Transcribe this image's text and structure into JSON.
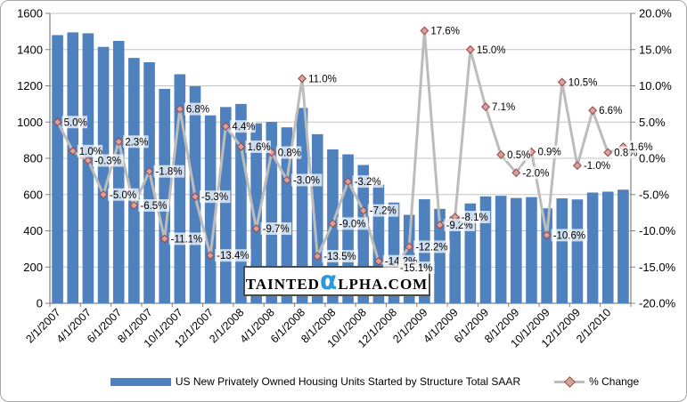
{
  "watermark": {
    "prefix": "TAINTED",
    "alpha": "α",
    "suffix": "LPHA.COM",
    "alpha_color": "#2b9ad6"
  },
  "chart_data": {
    "type": "bar+line combo",
    "title": "",
    "categories": [
      "2/1/2007",
      "3/1/2007",
      "4/1/2007",
      "5/1/2007",
      "6/1/2007",
      "7/1/2007",
      "8/1/2007",
      "9/1/2007",
      "10/1/2007",
      "11/1/2007",
      "12/1/2007",
      "1/1/2008",
      "2/1/2008",
      "3/1/2008",
      "4/1/2008",
      "5/1/2008",
      "6/1/2008",
      "7/1/2008",
      "8/1/2008",
      "9/1/2008",
      "10/1/2008",
      "11/1/2008",
      "12/1/2008",
      "1/1/2009",
      "2/1/2009",
      "3/1/2009",
      "4/1/2009",
      "5/1/2009",
      "6/1/2009",
      "7/1/2009",
      "8/1/2009",
      "9/1/2009",
      "10/1/2009",
      "11/1/2009",
      "12/1/2009",
      "1/1/2010",
      "2/1/2010",
      "3/1/2010"
    ],
    "x_tick_labels": [
      "2/1/2007",
      "4/1/2007",
      "6/1/2007",
      "8/1/2007",
      "10/1/2007",
      "12/1/2007",
      "2/1/2008",
      "4/1/2008",
      "6/1/2008",
      "8/1/2008",
      "10/1/2008",
      "12/1/2008",
      "2/1/2009",
      "4/1/2009",
      "6/1/2009",
      "8/1/2009",
      "10/1/2009",
      "12/1/2009",
      "2/1/2010"
    ],
    "series": [
      {
        "name": "US New Privately Owned Housing Units Started by Structure Total  SAAR",
        "type": "bar",
        "color": "#4e81bd",
        "axis": "left",
        "values": [
          1480,
          1495,
          1490,
          1415,
          1448,
          1354,
          1330,
          1183,
          1264,
          1198,
          1037,
          1083,
          1100,
          993,
          1001,
          971,
          1078,
          933,
          849,
          822,
          763,
          655,
          556,
          488,
          574,
          521,
          479,
          551,
          590,
          593,
          581,
          586,
          524,
          579,
          573,
          611,
          616,
          627
        ]
      },
      {
        "name": "% Change",
        "type": "line",
        "color": "#bcbcbc",
        "marker": "diamond",
        "marker_fill": "#d6a3a1",
        "marker_stroke": "#9e4b47",
        "axis": "right",
        "values": [
          5.0,
          1.0,
          -0.3,
          -5.0,
          2.3,
          -6.5,
          -1.8,
          -11.1,
          6.8,
          -5.3,
          -13.4,
          4.4,
          1.6,
          -9.7,
          0.8,
          -3.0,
          11.0,
          -13.5,
          -9.0,
          -3.2,
          -7.2,
          -14.2,
          -15.1,
          -12.2,
          17.6,
          -9.2,
          -8.1,
          15.0,
          7.1,
          0.5,
          -2.0,
          0.9,
          -10.6,
          10.5,
          -1.0,
          6.6,
          0.8,
          1.6
        ],
        "labels": [
          "5.0%",
          "1.0%",
          "-0.3%",
          "-5.0%",
          "2.3%",
          "-6.5%",
          "-1.8%",
          "-11.1%",
          "6.8%",
          "-5.3%",
          "-13.4%",
          "4.4%",
          "1.6%",
          "-9.7%",
          "0.8%",
          "-3.0%",
          "11.0%",
          "-13.5%",
          "-9.0%",
          "-3.2%",
          "-7.2%",
          "-14.2%",
          "-15.1%",
          "-12.2%",
          "17.6%",
          "-9.2%",
          "-8.1%",
          "15.0%",
          "7.1%",
          "0.5%",
          "-2.0%",
          "0.9%",
          "-10.6%",
          "10.5%",
          "-1.0%",
          "6.6%",
          "0.8%",
          "1.6%"
        ]
      }
    ],
    "left_axis": {
      "min": 0,
      "max": 1600,
      "tick_values": [
        1600,
        1400,
        1200,
        1000,
        800,
        600,
        400,
        200,
        0
      ],
      "tick_labels": [
        "1600",
        "1400",
        "1200",
        "1000",
        "800",
        "600",
        "400",
        "200",
        "0"
      ]
    },
    "right_axis": {
      "min": -20,
      "max": 20,
      "tick_values": [
        20,
        15,
        10,
        5,
        0,
        -5,
        -10,
        -15,
        -20
      ],
      "tick_labels": [
        "20.0%",
        "15.0%",
        "10.0%",
        "5.0%",
        "0.0%",
        "-5.0%",
        "-10.0%",
        "-15.0%",
        "-20.0%"
      ]
    },
    "grid": true,
    "grid_color": "#c3c3c3",
    "axis_color": "#808080",
    "text_color": "#000000",
    "label_bg": "rgba(255,255,255,0.72)",
    "legend_position": "bottom"
  }
}
